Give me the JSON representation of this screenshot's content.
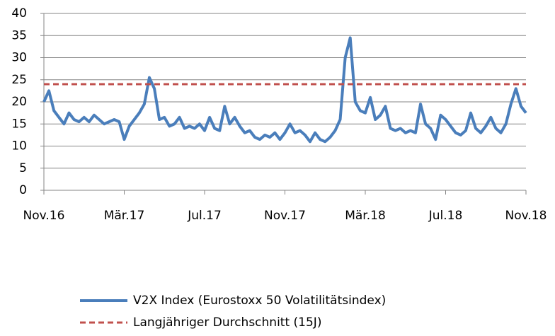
{
  "chart_data": {
    "type": "line",
    "categories": [
      "Nov.16",
      null,
      null,
      null,
      null,
      null,
      null,
      null,
      null,
      null,
      null,
      null,
      null,
      null,
      null,
      null,
      "Mär.17",
      null,
      null,
      null,
      null,
      null,
      null,
      null,
      null,
      null,
      null,
      null,
      null,
      null,
      null,
      null,
      "Jul.17",
      null,
      null,
      null,
      null,
      null,
      null,
      null,
      null,
      null,
      null,
      null,
      null,
      null,
      null,
      null,
      "Nov.17",
      null,
      null,
      null,
      null,
      null,
      null,
      null,
      null,
      null,
      null,
      null,
      null,
      null,
      null,
      null,
      "Mär.18",
      null,
      null,
      null,
      null,
      null,
      null,
      null,
      null,
      null,
      null,
      null,
      null,
      null,
      null,
      null,
      "Jul.18",
      null,
      null,
      null,
      null,
      null,
      null,
      null,
      null,
      null,
      null,
      null,
      null,
      null,
      null,
      null,
      "Nov.18"
    ],
    "series": [
      {
        "name": "V2X Index (Eurostoxx 50 Volatilitätsindex)",
        "color": "#4a7ebb",
        "style": "solid",
        "values": [
          20,
          22.5,
          18,
          16.5,
          15,
          17.5,
          16,
          15.5,
          16.5,
          15.5,
          17,
          16,
          15,
          15.5,
          16,
          15.5,
          11.5,
          14.5,
          16,
          17.5,
          19.5,
          25.5,
          23,
          16,
          16.5,
          14.5,
          15,
          16.5,
          14,
          14.5,
          14,
          15,
          13.5,
          16.5,
          14,
          13.5,
          19,
          15,
          16.5,
          14.5,
          13,
          13.5,
          12,
          11.5,
          12.5,
          12,
          13,
          11.5,
          13,
          15,
          13,
          13.5,
          12.5,
          11,
          13,
          11.5,
          11,
          12,
          13.5,
          16,
          30,
          34.5,
          20,
          18,
          17.5,
          21,
          16,
          17,
          19,
          14,
          13.5,
          14,
          13,
          13.5,
          13,
          19.5,
          15,
          14,
          11.5,
          17,
          16,
          14.5,
          13,
          12.5,
          13.5,
          17.5,
          14,
          13,
          14.5,
          16.5,
          14,
          13,
          15,
          19.5,
          23,
          19,
          17.5
        ]
      },
      {
        "name": "Langjähriger Durchschnitt (15J)",
        "color": "#c0504d",
        "style": "dashed",
        "values": [
          24,
          24,
          24,
          24,
          24,
          24,
          24,
          24,
          24,
          24,
          24,
          24,
          24,
          24,
          24,
          24,
          24,
          24,
          24,
          24,
          24,
          24,
          24,
          24,
          24,
          24,
          24,
          24,
          24,
          24,
          24,
          24,
          24,
          24,
          24,
          24,
          24,
          24,
          24,
          24,
          24,
          24,
          24,
          24,
          24,
          24,
          24,
          24,
          24,
          24,
          24,
          24,
          24,
          24,
          24,
          24,
          24,
          24,
          24,
          24,
          24,
          24,
          24,
          24,
          24,
          24,
          24,
          24,
          24,
          24,
          24,
          24,
          24,
          24,
          24,
          24,
          24,
          24,
          24,
          24,
          24,
          24,
          24,
          24,
          24,
          24,
          24,
          24,
          24,
          24,
          24,
          24,
          24,
          24,
          24,
          24,
          24
        ]
      }
    ],
    "ylim": [
      0,
      40
    ],
    "yticks": [
      0,
      5,
      10,
      15,
      20,
      25,
      30,
      35,
      40
    ],
    "grid": true,
    "legend": "bottom"
  }
}
